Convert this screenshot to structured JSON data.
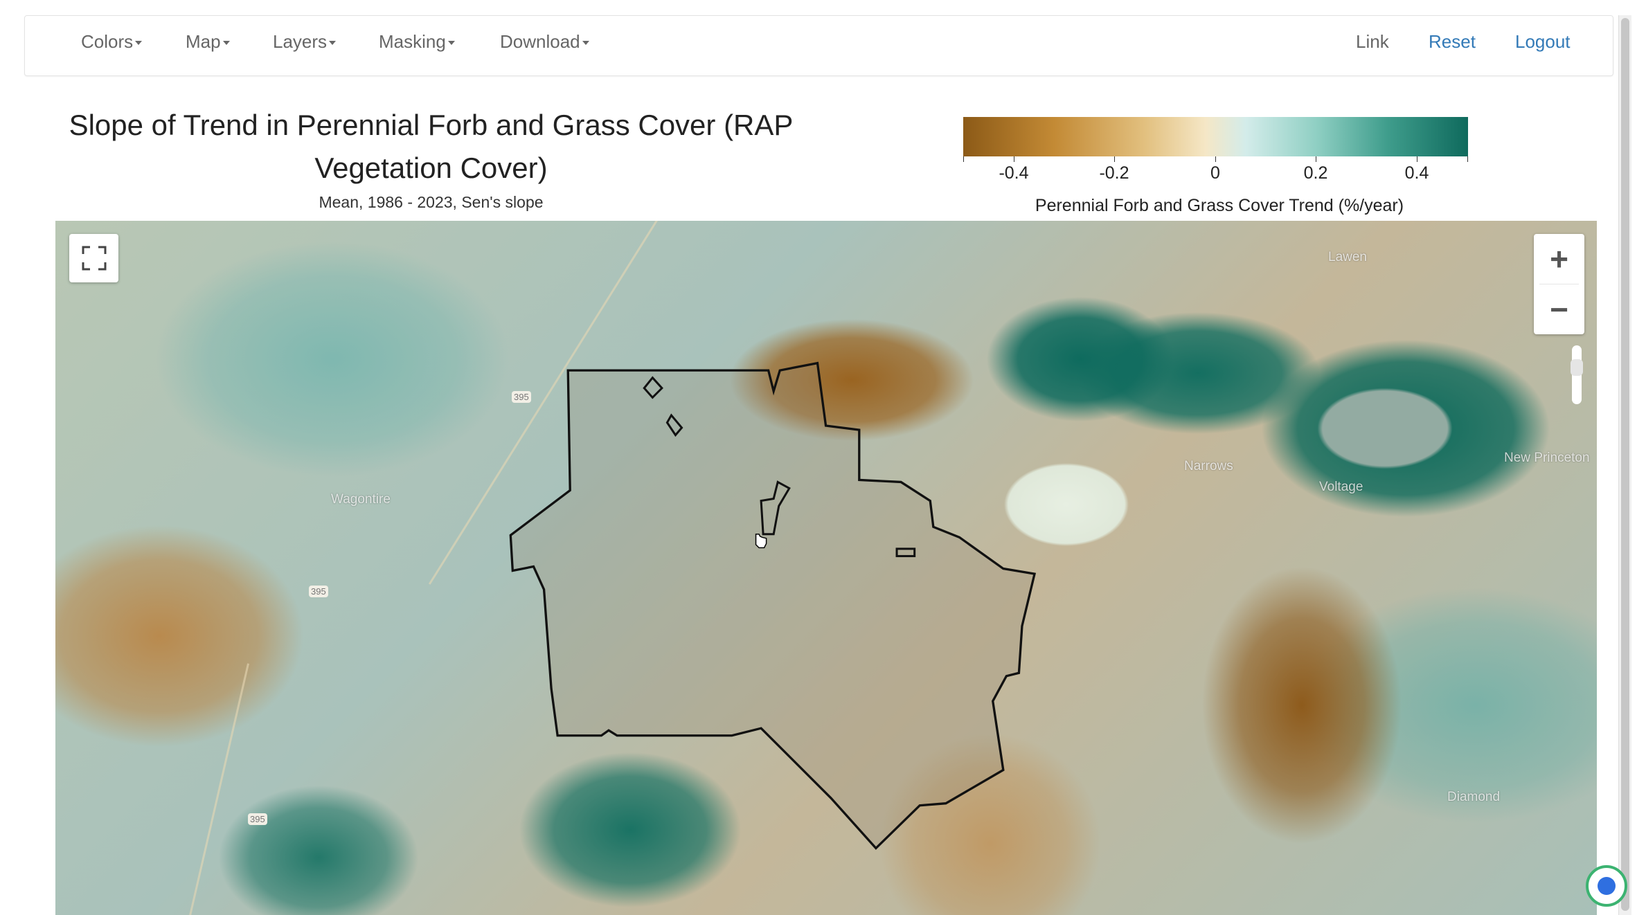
{
  "navbar": {
    "menus": [
      {
        "label": "Colors"
      },
      {
        "label": "Map"
      },
      {
        "label": "Layers"
      },
      {
        "label": "Masking"
      },
      {
        "label": "Download"
      }
    ],
    "link_label": "Link",
    "reset_label": "Reset",
    "logout_label": "Logout"
  },
  "header": {
    "title_line1": "Slope of Trend in Perennial Forb and Grass Cover (RAP",
    "title_line2": "Vegetation Cover)",
    "subtitle": "Mean, 1986 - 2023, Sen's slope"
  },
  "legend": {
    "ticks": [
      "-0.4",
      "-0.2",
      "0",
      "0.2",
      "0.4"
    ],
    "label": "Perennial Forb and Grass Cover Trend (%/year)",
    "colors": [
      "#8c5a17",
      "#c38a35",
      "#e2c07f",
      "#f5e7c6",
      "#d3ecea",
      "#8fcfc3",
      "#3f9d8c",
      "#0f6a5d"
    ]
  },
  "map": {
    "places": {
      "wagontire": "Wagontire",
      "lawen": "Lawen",
      "narrows": "Narrows",
      "voltage": "Voltage",
      "new_princeton": "New Princeton",
      "diamond": "Diamond"
    },
    "highway": "395",
    "zoom_in": "+",
    "zoom_out": "−",
    "boundary_color": "#111111"
  }
}
